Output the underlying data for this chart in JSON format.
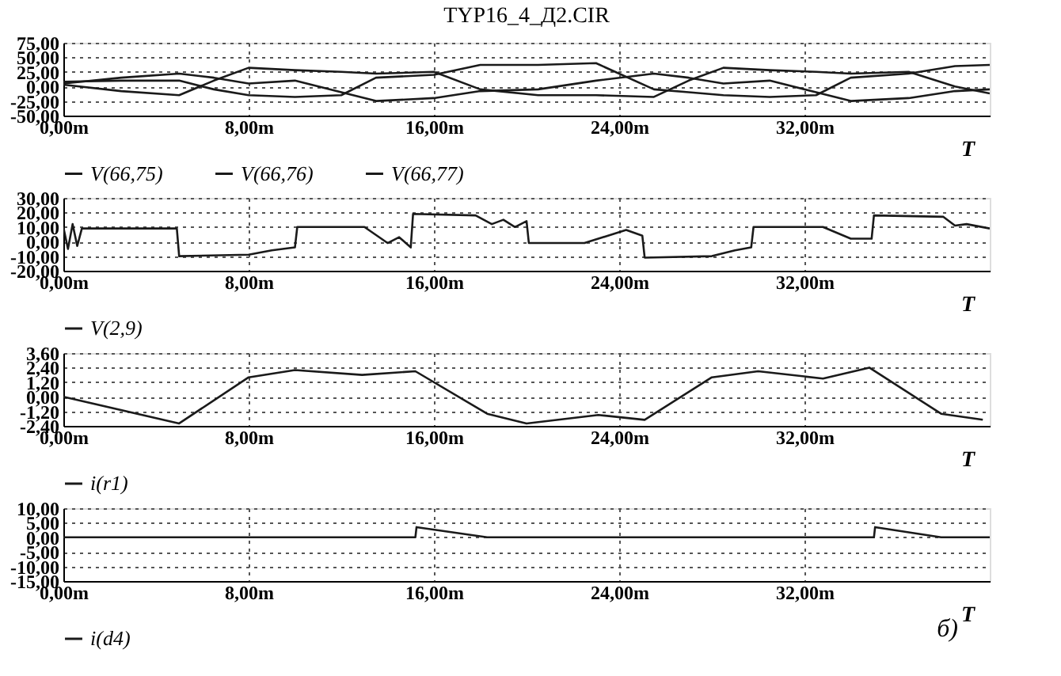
{
  "chart_data": [
    {
      "type": "line",
      "title": "TYP16_4_Д2.CIR",
      "xlabel": "T",
      "xlim": [
        0,
        40
      ],
      "xticks": [
        {
          "value": 0,
          "label": "0,00m"
        },
        {
          "value": 8,
          "label": "8,00m"
        },
        {
          "value": 16,
          "label": "16,00m"
        },
        {
          "value": 24,
          "label": "24,00m"
        },
        {
          "value": 32,
          "label": "32,00m"
        }
      ],
      "ylim": [
        -50,
        75
      ],
      "yticks": [
        {
          "value": -50,
          "label": "-50,00"
        },
        {
          "value": -25,
          "label": "-25,00"
        },
        {
          "value": 0,
          "label": "0,00"
        },
        {
          "value": 25,
          "label": "25,00"
        },
        {
          "value": 50,
          "label": "50,00"
        },
        {
          "value": 75,
          "label": "75,00"
        }
      ],
      "grid": true,
      "line_style": "solid",
      "legend": "bottom",
      "series": [
        {
          "name": "V(66,75)",
          "color": "#1a1a1a",
          "x": [
            0,
            2.5,
            5,
            6.5,
            8,
            10,
            12,
            13.5,
            16,
            18,
            20.5,
            23,
            25.5,
            27,
            28.5,
            30.5,
            32.5,
            34,
            36.5,
            38.5,
            40
          ],
          "values": [
            5,
            15,
            22,
            15,
            5,
            10,
            -10,
            -25,
            -20,
            -8,
            -5,
            10,
            22,
            15,
            5,
            10,
            -10,
            -25,
            -20,
            -8,
            -5
          ]
        },
        {
          "name": "V(66,76)",
          "color": "#1a1a1a",
          "x": [
            0,
            2.5,
            5,
            6.5,
            8,
            10,
            12,
            13.5,
            16,
            18,
            20.5,
            23,
            25.5,
            27,
            28.5,
            30.5,
            32.5,
            34,
            36.5,
            38.5,
            40
          ],
          "values": [
            3,
            -8,
            -15,
            10,
            32,
            28,
            25,
            22,
            25,
            -5,
            -15,
            -15,
            -18,
            10,
            32,
            28,
            25,
            22,
            25,
            0,
            -12
          ]
        },
        {
          "name": "V(66,77)",
          "color": "#1a1a1a",
          "x": [
            0,
            2.5,
            5,
            6.5,
            8,
            10,
            12,
            13.5,
            16,
            18,
            20.5,
            23,
            25.5,
            27,
            28.5,
            30.5,
            32.5,
            34,
            36.5,
            38.5,
            40
          ],
          "values": [
            8,
            10,
            10,
            -5,
            -15,
            -18,
            -15,
            15,
            20,
            37,
            37,
            40,
            -5,
            -10,
            -15,
            -18,
            -15,
            15,
            22,
            35,
            37
          ]
        }
      ]
    },
    {
      "type": "line",
      "xlabel": "T",
      "xlim": [
        0,
        40
      ],
      "xticks": [
        {
          "value": 0,
          "label": "0,00m"
        },
        {
          "value": 8,
          "label": "8,00m"
        },
        {
          "value": 16,
          "label": "16,00m"
        },
        {
          "value": 24,
          "label": "24,00m"
        },
        {
          "value": 32,
          "label": "32,00m"
        }
      ],
      "ylim": [
        -20,
        30
      ],
      "yticks": [
        {
          "value": -20,
          "label": "-20,00"
        },
        {
          "value": -10,
          "label": "-10,00"
        },
        {
          "value": 0,
          "label": "0,00"
        },
        {
          "value": 10,
          "label": "10,00"
        },
        {
          "value": 20,
          "label": "20,00"
        },
        {
          "value": 30,
          "label": "30,00"
        }
      ],
      "grid": true,
      "line_style": "solid",
      "legend": "bottom",
      "series": [
        {
          "name": "V(2,9)",
          "color": "#1a1a1a",
          "x": [
            0,
            0.2,
            0.4,
            0.6,
            0.8,
            4.9,
            5.0,
            8,
            9,
            10,
            10.1,
            13,
            14,
            14.5,
            15,
            15.1,
            17.8,
            18.5,
            19,
            19.5,
            20,
            20.1,
            22.5,
            24.3,
            25,
            25.1,
            28,
            29,
            29.7,
            29.8,
            32.8,
            34,
            34.9,
            35,
            38,
            38.5,
            39,
            40
          ],
          "values": [
            10,
            -5,
            12,
            -3,
            9,
            9,
            -10,
            -9,
            -6,
            -4,
            10,
            10,
            -1,
            3,
            -4,
            19,
            18,
            12,
            15,
            10,
            14,
            -1,
            -1,
            8,
            4,
            -11,
            -10,
            -6,
            -4,
            10,
            10,
            2,
            2,
            18,
            17,
            11,
            12,
            9
          ]
        }
      ]
    },
    {
      "type": "line",
      "xlabel": "T",
      "xlim": [
        0,
        40
      ],
      "xticks": [
        {
          "value": 0,
          "label": "0,00m"
        },
        {
          "value": 8,
          "label": "8,00m"
        },
        {
          "value": 16,
          "label": "16,00m"
        },
        {
          "value": 24,
          "label": "24,00m"
        },
        {
          "value": 32,
          "label": "32,00m"
        }
      ],
      "ylim": [
        -2.4,
        3.6
      ],
      "yticks": [
        {
          "value": -2.4,
          "label": "-2,40"
        },
        {
          "value": -1.2,
          "label": "-1,20"
        },
        {
          "value": 0,
          "label": "0,00"
        },
        {
          "value": 1.2,
          "label": "1,20"
        },
        {
          "value": 2.4,
          "label": "2,40"
        },
        {
          "value": 3.6,
          "label": "3,60"
        }
      ],
      "grid": true,
      "line_style": "solid",
      "legend": "bottom",
      "series": [
        {
          "name": "i(r1)",
          "color": "#1a1a1a",
          "x": [
            0,
            5,
            8,
            10,
            12.9,
            15.2,
            18.3,
            20,
            23.1,
            25.1,
            28,
            30,
            32.8,
            34.8,
            37.9,
            39.7
          ],
          "values": [
            0,
            -2.2,
            1.6,
            2.2,
            1.8,
            2.1,
            -1.4,
            -2.2,
            -1.5,
            -1.9,
            1.6,
            2.1,
            1.5,
            2.4,
            -1.4,
            -1.9
          ]
        }
      ]
    },
    {
      "type": "line",
      "xlabel": "T",
      "xlim": [
        0,
        40
      ],
      "xticks": [
        {
          "value": 0,
          "label": "0,00m"
        },
        {
          "value": 8,
          "label": "8,00m"
        },
        {
          "value": 16,
          "label": "16,00m"
        },
        {
          "value": 24,
          "label": "24,00m"
        },
        {
          "value": 32,
          "label": "32,00m"
        }
      ],
      "ylim": [
        -15,
        10
      ],
      "yticks": [
        {
          "value": -15,
          "label": "-15,00"
        },
        {
          "value": -10,
          "label": "-10,00"
        },
        {
          "value": -5,
          "label": "-5,00"
        },
        {
          "value": 0,
          "label": "0,00"
        },
        {
          "value": 5,
          "label": "5,00"
        },
        {
          "value": 10,
          "label": "10,00"
        }
      ],
      "grid": true,
      "line_style": "solid",
      "legend": "bottom",
      "annotations": [
        "б)"
      ],
      "series": [
        {
          "name": "i(d4)",
          "color": "#1a1a1a",
          "x": [
            0,
            15.2,
            15.25,
            18.3,
            35,
            35.05,
            37.9,
            40
          ],
          "values": [
            0,
            0,
            3.5,
            0,
            0,
            3.5,
            0,
            0
          ]
        }
      ]
    }
  ]
}
